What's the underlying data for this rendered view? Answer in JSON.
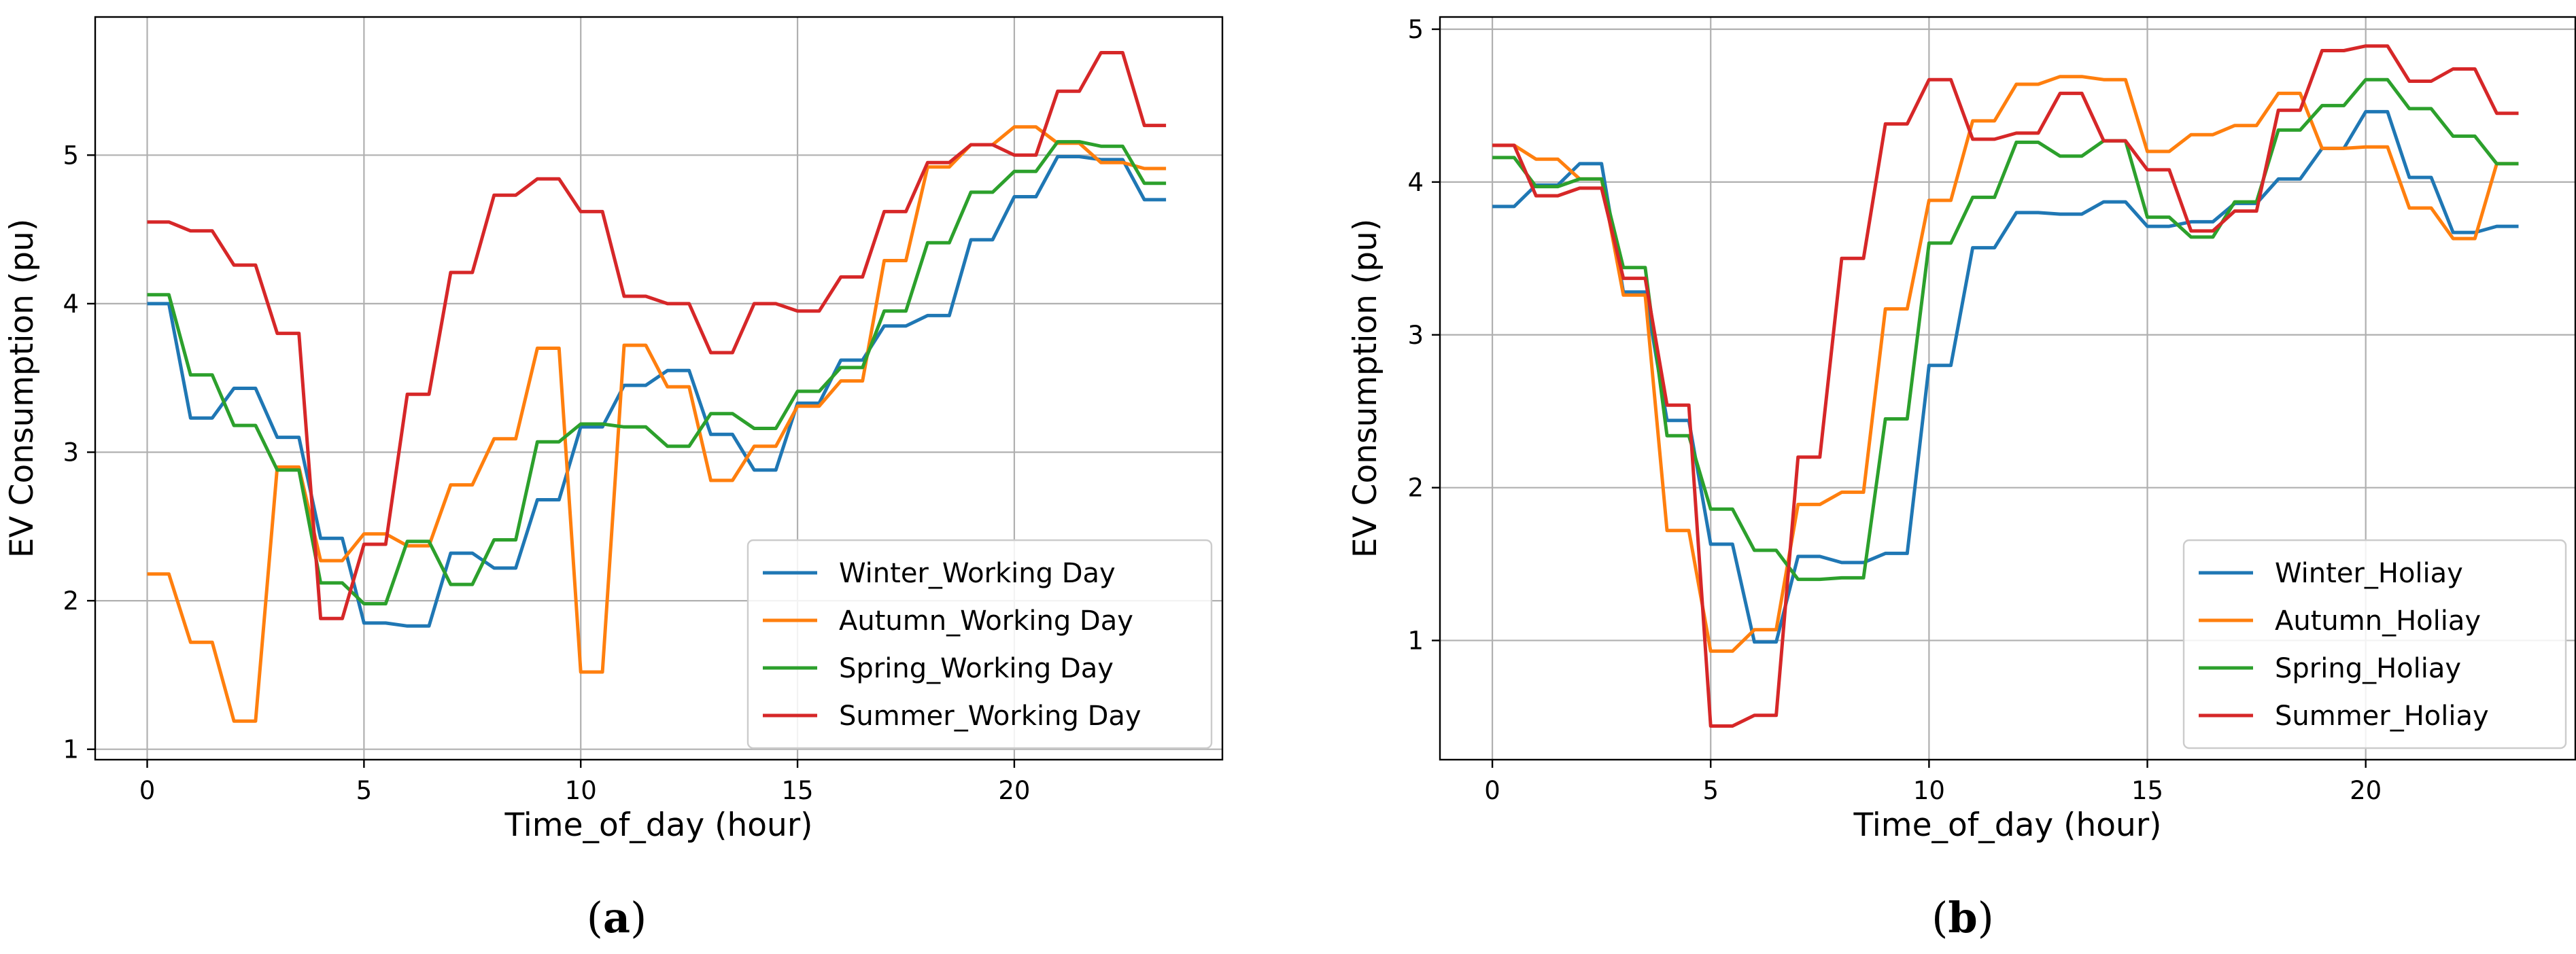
{
  "chart_data": [
    {
      "id": "a",
      "type": "line",
      "caption": "(a)",
      "xlabel": "Time_of_day (hour)",
      "ylabel": "EV Consumption (pu)",
      "xlim": [
        -1.2,
        24.8
      ],
      "ylim": [
        0.93,
        5.93
      ],
      "xticks": [
        0,
        5,
        10,
        15,
        20
      ],
      "yticks": [
        1,
        2,
        3,
        4,
        5
      ],
      "grid": true,
      "legend_position": "lower-right",
      "x": [
        0,
        0.5,
        1,
        1.5,
        2,
        2.5,
        3,
        3.5,
        4,
        4.5,
        5,
        5.5,
        6,
        6.5,
        7,
        7.5,
        8,
        8.5,
        9,
        9.5,
        10,
        10.5,
        11,
        11.5,
        12,
        12.5,
        13,
        13.5,
        14,
        14.5,
        15,
        15.5,
        16,
        16.5,
        17,
        17.5,
        18,
        18.5,
        19,
        19.5,
        20,
        20.5,
        21,
        21.5,
        22,
        22.5,
        23,
        23.5
      ],
      "series": [
        {
          "name": "Winter_Working Day",
          "color": "#1f77b4",
          "values": [
            4.0,
            4.0,
            3.23,
            3.23,
            3.43,
            3.43,
            3.1,
            3.1,
            2.42,
            2.42,
            1.85,
            1.85,
            1.83,
            1.83,
            2.32,
            2.32,
            2.22,
            2.22,
            2.68,
            2.68,
            3.17,
            3.17,
            3.45,
            3.45,
            3.55,
            3.55,
            3.12,
            3.12,
            2.88,
            2.88,
            3.33,
            3.33,
            3.62,
            3.62,
            3.85,
            3.85,
            3.92,
            3.92,
            4.43,
            4.43,
            4.72,
            4.72,
            4.99,
            4.99,
            4.97,
            4.97,
            4.7,
            4.7
          ]
        },
        {
          "name": "Autumn_Working Day",
          "color": "#ff7f0e",
          "values": [
            2.18,
            2.18,
            1.72,
            1.72,
            1.19,
            1.19,
            2.9,
            2.9,
            2.27,
            2.27,
            2.45,
            2.45,
            2.37,
            2.37,
            2.78,
            2.78,
            3.09,
            3.09,
            3.7,
            3.7,
            1.52,
            1.52,
            3.72,
            3.72,
            3.44,
            3.44,
            2.81,
            2.81,
            3.04,
            3.04,
            3.31,
            3.31,
            3.48,
            3.48,
            4.29,
            4.29,
            4.92,
            4.92,
            5.07,
            5.07,
            5.19,
            5.19,
            5.08,
            5.08,
            4.95,
            4.95,
            4.91,
            4.91
          ]
        },
        {
          "name": "Spring_Working Day",
          "color": "#2ca02c",
          "values": [
            4.06,
            4.06,
            3.52,
            3.52,
            3.18,
            3.18,
            2.88,
            2.88,
            2.12,
            2.12,
            1.98,
            1.98,
            2.4,
            2.4,
            2.11,
            2.11,
            2.41,
            2.41,
            3.07,
            3.07,
            3.19,
            3.19,
            3.17,
            3.17,
            3.04,
            3.04,
            3.26,
            3.26,
            3.16,
            3.16,
            3.41,
            3.41,
            3.57,
            3.57,
            3.95,
            3.95,
            4.41,
            4.41,
            4.75,
            4.75,
            4.89,
            4.89,
            5.09,
            5.09,
            5.06,
            5.06,
            4.81,
            4.81
          ]
        },
        {
          "name": "Summer_Working Day",
          "color": "#d62728",
          "values": [
            4.55,
            4.55,
            4.49,
            4.49,
            4.26,
            4.26,
            3.8,
            3.8,
            1.88,
            1.88,
            2.38,
            2.38,
            3.39,
            3.39,
            4.21,
            4.21,
            4.73,
            4.73,
            4.84,
            4.84,
            4.62,
            4.62,
            4.05,
            4.05,
            4.0,
            4.0,
            3.67,
            3.67,
            4.0,
            4.0,
            3.95,
            3.95,
            4.18,
            4.18,
            4.62,
            4.62,
            4.95,
            4.95,
            5.07,
            5.07,
            5.0,
            5.0,
            5.43,
            5.43,
            5.69,
            5.69,
            5.2,
            5.2
          ]
        }
      ]
    },
    {
      "id": "b",
      "type": "line",
      "caption": "(b)",
      "xlabel": "Time_of_day (hour)",
      "ylabel": "EV Consumption (pu)",
      "xlim": [
        -1.2,
        24.8
      ],
      "ylim": [
        0.22,
        5.08
      ],
      "xticks": [
        0,
        5,
        10,
        15,
        20
      ],
      "yticks": [
        1,
        2,
        3,
        4,
        5
      ],
      "grid": true,
      "legend_position": "lower-right",
      "x": [
        0,
        0.5,
        1,
        1.5,
        2,
        2.5,
        3,
        3.5,
        4,
        4.5,
        5,
        5.5,
        6,
        6.5,
        7,
        7.5,
        8,
        8.5,
        9,
        9.5,
        10,
        10.5,
        11,
        11.5,
        12,
        12.5,
        13,
        13.5,
        14,
        14.5,
        15,
        15.5,
        16,
        16.5,
        17,
        17.5,
        18,
        18.5,
        19,
        19.5,
        20,
        20.5,
        21,
        21.5,
        22,
        22.5,
        23,
        23.5
      ],
      "series": [
        {
          "name": "Winter_Holiay",
          "color": "#1f77b4",
          "values": [
            3.84,
            3.84,
            3.98,
            3.98,
            4.12,
            4.12,
            3.28,
            3.28,
            2.44,
            2.44,
            1.63,
            1.63,
            0.99,
            0.99,
            1.55,
            1.55,
            1.51,
            1.51,
            1.57,
            1.57,
            2.8,
            2.8,
            3.57,
            3.57,
            3.8,
            3.8,
            3.79,
            3.79,
            3.87,
            3.87,
            3.71,
            3.71,
            3.74,
            3.74,
            3.86,
            3.86,
            4.02,
            4.02,
            4.22,
            4.22,
            4.46,
            4.46,
            4.03,
            4.03,
            3.67,
            3.67,
            3.71,
            3.71
          ]
        },
        {
          "name": "Autumn_Holiay",
          "color": "#ff7f0e",
          "values": [
            4.24,
            4.24,
            4.15,
            4.15,
            4.02,
            4.02,
            3.26,
            3.26,
            1.72,
            1.72,
            0.93,
            0.93,
            1.07,
            1.07,
            1.89,
            1.89,
            1.97,
            1.97,
            3.17,
            3.17,
            3.88,
            3.88,
            4.4,
            4.4,
            4.64,
            4.64,
            4.69,
            4.69,
            4.67,
            4.67,
            4.2,
            4.2,
            4.31,
            4.31,
            4.37,
            4.37,
            4.58,
            4.58,
            4.22,
            4.22,
            4.23,
            4.23,
            3.83,
            3.83,
            3.63,
            3.63,
            4.12,
            4.12
          ]
        },
        {
          "name": "Spring_Holiay",
          "color": "#2ca02c",
          "values": [
            4.16,
            4.16,
            3.97,
            3.97,
            4.02,
            4.02,
            3.44,
            3.44,
            2.34,
            2.34,
            1.86,
            1.86,
            1.59,
            1.59,
            1.4,
            1.4,
            1.41,
            1.41,
            2.45,
            2.45,
            3.6,
            3.6,
            3.9,
            3.9,
            4.26,
            4.26,
            4.17,
            4.17,
            4.27,
            4.27,
            3.77,
            3.77,
            3.64,
            3.64,
            3.87,
            3.87,
            4.34,
            4.34,
            4.5,
            4.5,
            4.67,
            4.67,
            4.48,
            4.48,
            4.3,
            4.3,
            4.12,
            4.12
          ]
        },
        {
          "name": "Summer_Holiay",
          "color": "#d62728",
          "values": [
            4.24,
            4.24,
            3.91,
            3.91,
            3.96,
            3.96,
            3.37,
            3.37,
            2.54,
            2.54,
            0.44,
            0.44,
            0.51,
            0.51,
            2.2,
            2.2,
            3.5,
            3.5,
            4.38,
            4.38,
            4.67,
            4.67,
            4.28,
            4.28,
            4.32,
            4.32,
            4.58,
            4.58,
            4.27,
            4.27,
            4.08,
            4.08,
            3.68,
            3.68,
            3.81,
            3.81,
            4.47,
            4.47,
            4.86,
            4.86,
            4.89,
            4.89,
            4.66,
            4.66,
            4.74,
            4.74,
            4.45,
            4.45
          ]
        }
      ]
    }
  ]
}
